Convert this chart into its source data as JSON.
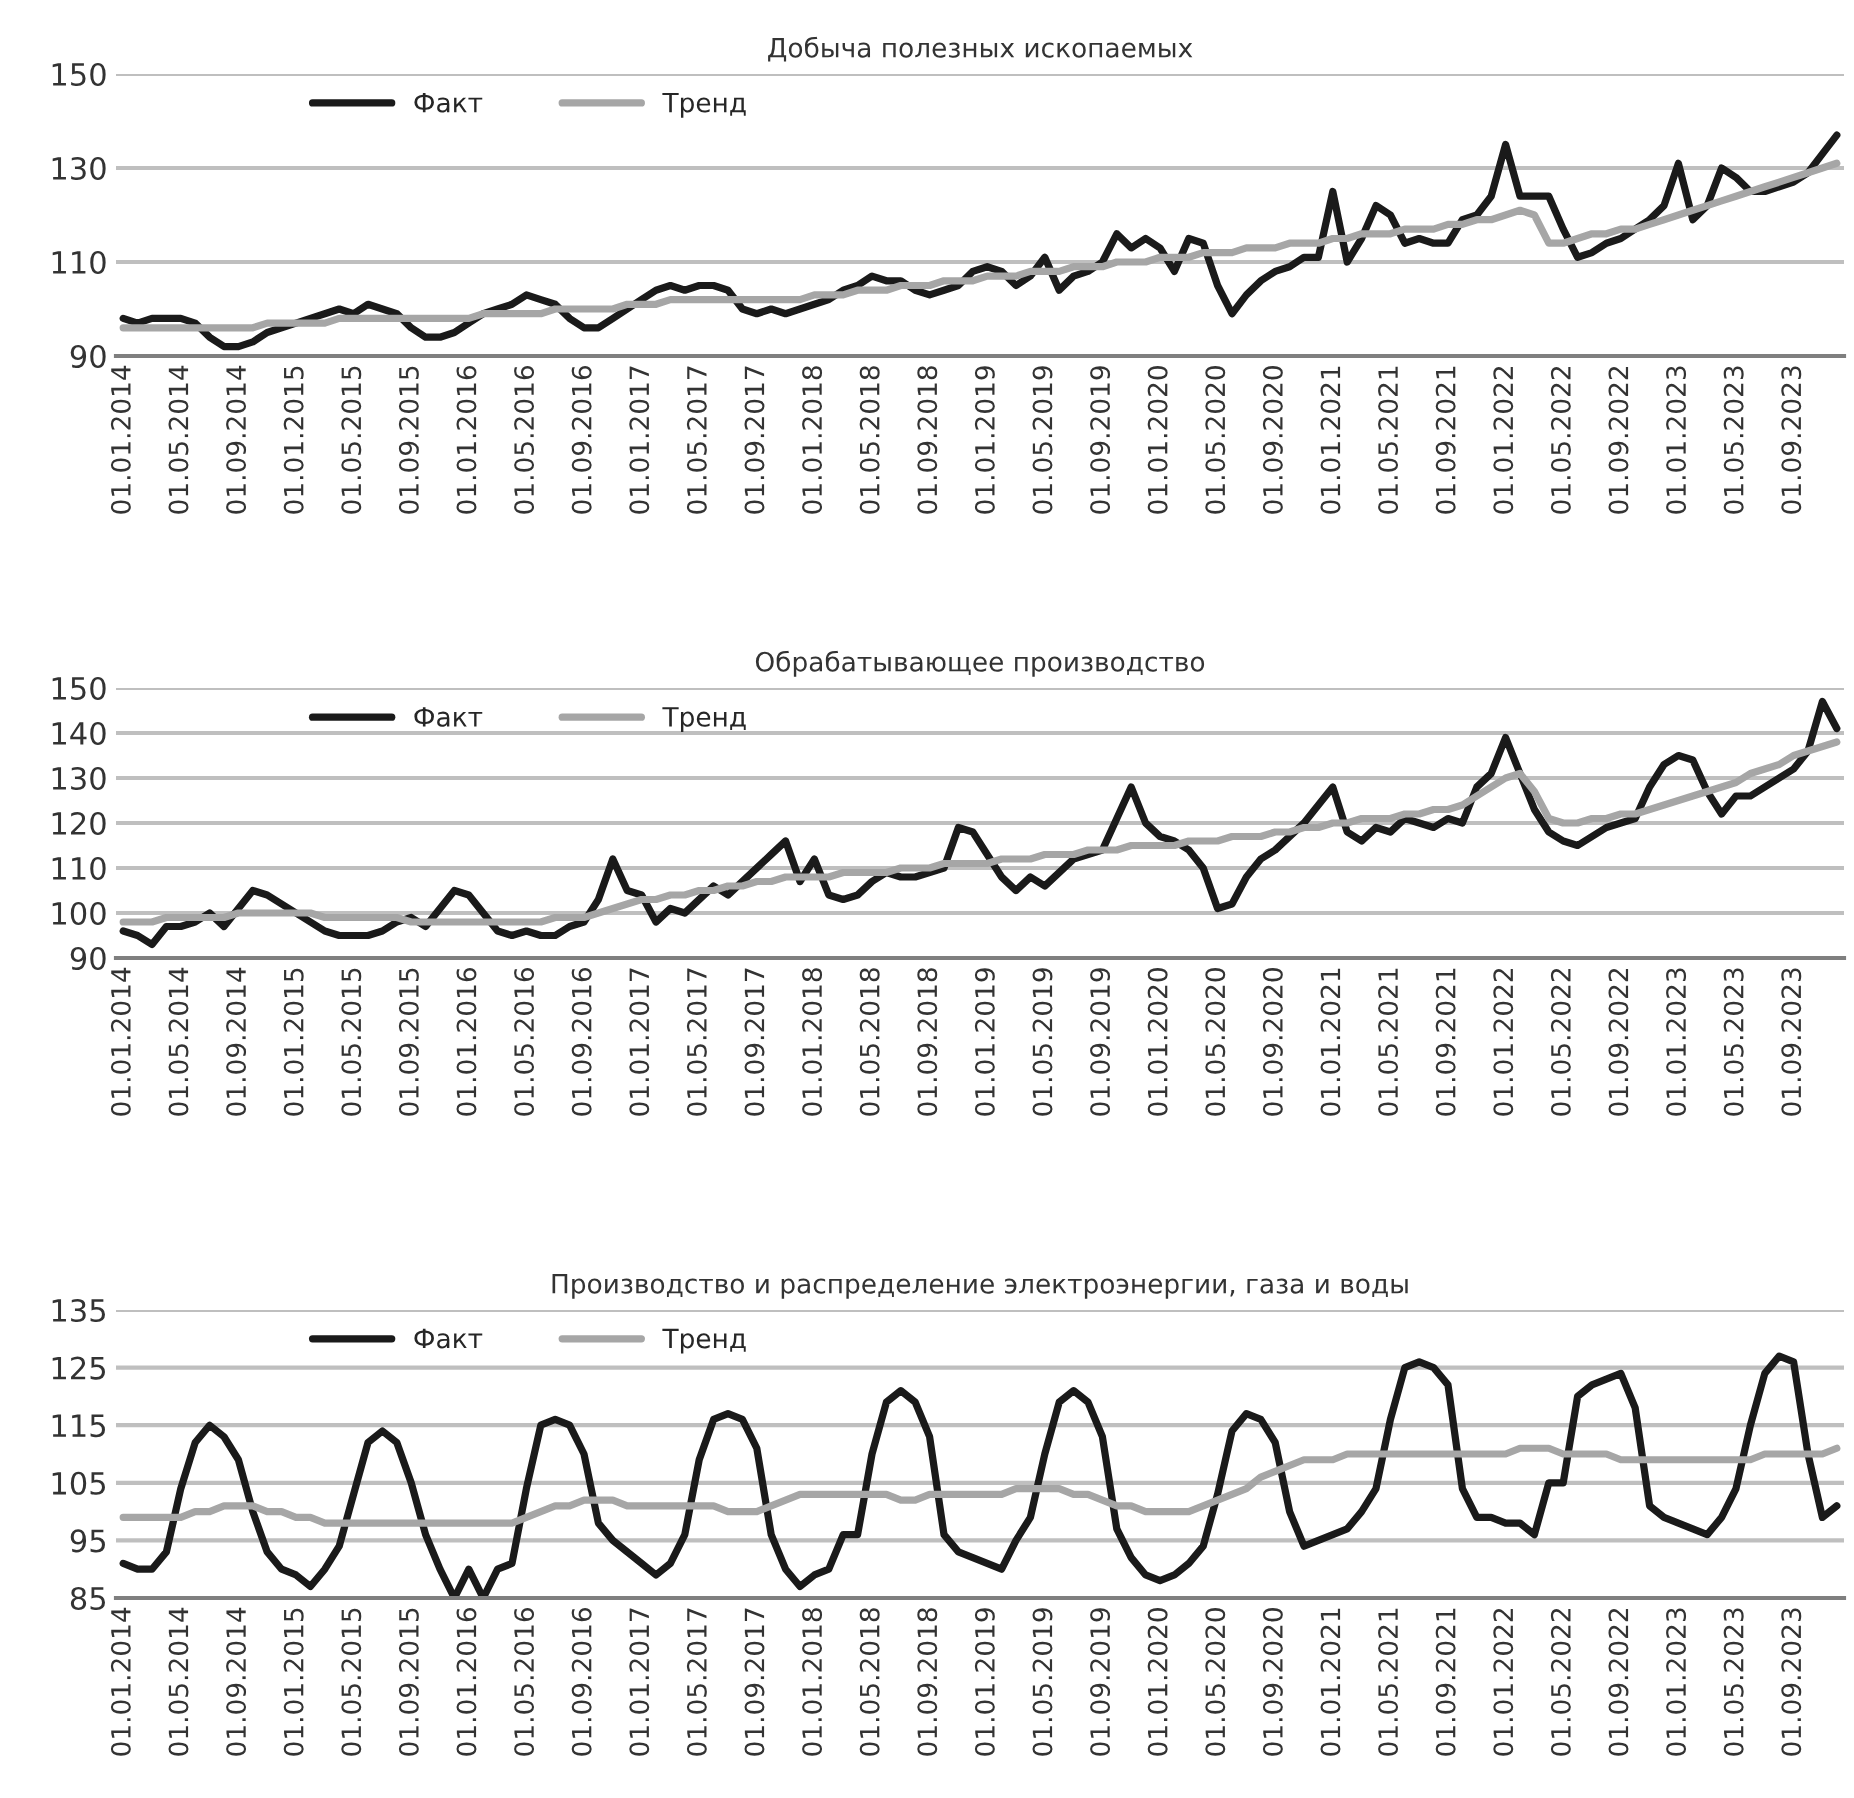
{
  "chart_data": [
    {
      "type": "line",
      "title": "Добыча полезных ископаемых",
      "categories": [
        "01.01.2014",
        null,
        null,
        null,
        "01.05.2014",
        null,
        null,
        null,
        "01.09.2014",
        null,
        null,
        null,
        "01.01.2015",
        null,
        null,
        null,
        "01.05.2015",
        null,
        null,
        null,
        "01.09.2015",
        null,
        null,
        null,
        "01.01.2016",
        null,
        null,
        null,
        "01.05.2016",
        null,
        null,
        null,
        "01.09.2016",
        null,
        null,
        null,
        "01.01.2017",
        null,
        null,
        null,
        "01.05.2017",
        null,
        null,
        null,
        "01.09.2017",
        null,
        null,
        null,
        "01.01.2018",
        null,
        null,
        null,
        "01.05.2018",
        null,
        null,
        null,
        "01.09.2018",
        null,
        null,
        null,
        "01.01.2019",
        null,
        null,
        null,
        "01.05.2019",
        null,
        null,
        null,
        "01.09.2019",
        null,
        null,
        null,
        "01.01.2020",
        null,
        null,
        null,
        "01.05.2020",
        null,
        null,
        null,
        "01.09.2020",
        null,
        null,
        null,
        "01.01.2021",
        null,
        null,
        null,
        "01.05.2021",
        null,
        null,
        null,
        "01.09.2021",
        null,
        null,
        null,
        "01.01.2022",
        null,
        null,
        null,
        "01.05.2022",
        null,
        null,
        null,
        "01.09.2022",
        null,
        null,
        null,
        "01.01.2023",
        null,
        null,
        null,
        "01.05.2023",
        null,
        null,
        null,
        "01.09.2023",
        null,
        null,
        null
      ],
      "series": [
        {
          "name": "Факт",
          "color": "#1a1a1a",
          "values": [
            98,
            97,
            98,
            98,
            98,
            97,
            94,
            92,
            92,
            93,
            95,
            96,
            97,
            98,
            99,
            100,
            99,
            101,
            100,
            99,
            96,
            94,
            94,
            95,
            97,
            99,
            100,
            101,
            103,
            102,
            101,
            98,
            96,
            96,
            98,
            100,
            102,
            104,
            105,
            104,
            105,
            105,
            104,
            100,
            99,
            100,
            99,
            100,
            101,
            102,
            104,
            105,
            107,
            106,
            106,
            104,
            103,
            104,
            105,
            108,
            109,
            108,
            105,
            107,
            111,
            104,
            107,
            108,
            110,
            116,
            113,
            115,
            113,
            108,
            115,
            114,
            105,
            99,
            103,
            106,
            108,
            109,
            111,
            111,
            125,
            110,
            115,
            122,
            120,
            114,
            115,
            114,
            114,
            119,
            120,
            124,
            135,
            124,
            124,
            124,
            117,
            111,
            112,
            114,
            115,
            117,
            119,
            122,
            131,
            119,
            122,
            130,
            128,
            125,
            125,
            126,
            127,
            129,
            133,
            137
          ]
        },
        {
          "name": "Тренд",
          "color": "#a6a6a6",
          "values": [
            96,
            96,
            96,
            96,
            96,
            96,
            96,
            96,
            96,
            96,
            97,
            97,
            97,
            97,
            97,
            98,
            98,
            98,
            98,
            98,
            98,
            98,
            98,
            98,
            98,
            99,
            99,
            99,
            99,
            99,
            100,
            100,
            100,
            100,
            100,
            101,
            101,
            101,
            102,
            102,
            102,
            102,
            102,
            102,
            102,
            102,
            102,
            102,
            103,
            103,
            103,
            104,
            104,
            104,
            105,
            105,
            105,
            106,
            106,
            106,
            107,
            107,
            107,
            108,
            108,
            108,
            109,
            109,
            109,
            110,
            110,
            110,
            111,
            111,
            111,
            112,
            112,
            112,
            113,
            113,
            113,
            114,
            114,
            114,
            115,
            115,
            116,
            116,
            116,
            117,
            117,
            117,
            118,
            118,
            119,
            119,
            120,
            121,
            120,
            114,
            114,
            115,
            116,
            116,
            117,
            117,
            118,
            119,
            120,
            121,
            122,
            123,
            124,
            125,
            126,
            127,
            128,
            129,
            130,
            131
          ]
        }
      ],
      "ylim": [
        90,
        150
      ],
      "yticks": [
        90,
        110,
        130,
        150
      ],
      "grid": "y",
      "legend": "top left"
    },
    {
      "type": "line",
      "title": "Обрабатывающее производство",
      "categories": [
        "01.01.2014",
        null,
        null,
        null,
        "01.05.2014",
        null,
        null,
        null,
        "01.09.2014",
        null,
        null,
        null,
        "01.01.2015",
        null,
        null,
        null,
        "01.05.2015",
        null,
        null,
        null,
        "01.09.2015",
        null,
        null,
        null,
        "01.01.2016",
        null,
        null,
        null,
        "01.05.2016",
        null,
        null,
        null,
        "01.09.2016",
        null,
        null,
        null,
        "01.01.2017",
        null,
        null,
        null,
        "01.05.2017",
        null,
        null,
        null,
        "01.09.2017",
        null,
        null,
        null,
        "01.01.2018",
        null,
        null,
        null,
        "01.05.2018",
        null,
        null,
        null,
        "01.09.2018",
        null,
        null,
        null,
        "01.01.2019",
        null,
        null,
        null,
        "01.05.2019",
        null,
        null,
        null,
        "01.09.2019",
        null,
        null,
        null,
        "01.01.2020",
        null,
        null,
        null,
        "01.05.2020",
        null,
        null,
        null,
        "01.09.2020",
        null,
        null,
        null,
        "01.01.2021",
        null,
        null,
        null,
        "01.05.2021",
        null,
        null,
        null,
        "01.09.2021",
        null,
        null,
        null,
        "01.01.2022",
        null,
        null,
        null,
        "01.05.2022",
        null,
        null,
        null,
        "01.09.2022",
        null,
        null,
        null,
        "01.01.2023",
        null,
        null,
        null,
        "01.05.2023",
        null,
        null,
        null,
        "01.09.2023",
        null,
        null,
        null
      ],
      "series": [
        {
          "name": "Факт",
          "color": "#1a1a1a",
          "values": [
            96,
            95,
            93,
            97,
            97,
            98,
            100,
            97,
            101,
            105,
            104,
            102,
            100,
            98,
            96,
            95,
            95,
            95,
            96,
            98,
            99,
            97,
            101,
            105,
            104,
            100,
            96,
            95,
            96,
            95,
            95,
            97,
            98,
            103,
            112,
            105,
            104,
            98,
            101,
            100,
            103,
            106,
            104,
            107,
            110,
            113,
            116,
            107,
            112,
            104,
            103,
            104,
            107,
            109,
            108,
            108,
            109,
            110,
            119,
            118,
            113,
            108,
            105,
            108,
            106,
            109,
            112,
            113,
            114,
            121,
            128,
            120,
            117,
            116,
            114,
            110,
            101,
            102,
            108,
            112,
            114,
            117,
            120,
            124,
            128,
            118,
            116,
            119,
            118,
            121,
            120,
            119,
            121,
            120,
            128,
            131,
            139,
            131,
            123,
            118,
            116,
            115,
            117,
            119,
            120,
            121,
            128,
            133,
            135,
            134,
            127,
            122,
            126,
            126,
            128,
            130,
            132,
            136,
            147,
            141
          ]
        },
        {
          "name": "Тренд",
          "color": "#a6a6a6",
          "values": [
            98,
            98,
            98,
            99,
            99,
            99,
            99,
            99,
            100,
            100,
            100,
            100,
            100,
            100,
            99,
            99,
            99,
            99,
            99,
            99,
            98,
            98,
            98,
            98,
            98,
            98,
            98,
            98,
            98,
            98,
            99,
            99,
            99,
            100,
            101,
            102,
            103,
            103,
            104,
            104,
            105,
            105,
            106,
            106,
            107,
            107,
            108,
            108,
            108,
            108,
            109,
            109,
            109,
            109,
            110,
            110,
            110,
            111,
            111,
            111,
            111,
            112,
            112,
            112,
            113,
            113,
            113,
            114,
            114,
            114,
            115,
            115,
            115,
            115,
            116,
            116,
            116,
            117,
            117,
            117,
            118,
            118,
            119,
            119,
            120,
            120,
            121,
            121,
            121,
            122,
            122,
            123,
            123,
            124,
            126,
            128,
            130,
            131,
            127,
            121,
            120,
            120,
            121,
            121,
            122,
            122,
            123,
            124,
            125,
            126,
            127,
            128,
            129,
            131,
            132,
            133,
            135,
            136,
            137,
            138
          ]
        }
      ],
      "ylim": [
        90,
        150
      ],
      "yticks": [
        90,
        100,
        110,
        120,
        130,
        140,
        150
      ],
      "grid": "y",
      "legend": "top left"
    },
    {
      "type": "line",
      "title": "Производство и распределение электроэнергии, газа и воды",
      "categories": [
        "01.01.2014",
        null,
        null,
        null,
        "01.05.2014",
        null,
        null,
        null,
        "01.09.2014",
        null,
        null,
        null,
        "01.01.2015",
        null,
        null,
        null,
        "01.05.2015",
        null,
        null,
        null,
        "01.09.2015",
        null,
        null,
        null,
        "01.01.2016",
        null,
        null,
        null,
        "01.05.2016",
        null,
        null,
        null,
        "01.09.2016",
        null,
        null,
        null,
        "01.01.2017",
        null,
        null,
        null,
        "01.05.2017",
        null,
        null,
        null,
        "01.09.2017",
        null,
        null,
        null,
        "01.01.2018",
        null,
        null,
        null,
        "01.05.2018",
        null,
        null,
        null,
        "01.09.2018",
        null,
        null,
        null,
        "01.01.2019",
        null,
        null,
        null,
        "01.05.2019",
        null,
        null,
        null,
        "01.09.2019",
        null,
        null,
        null,
        "01.01.2020",
        null,
        null,
        null,
        "01.05.2020",
        null,
        null,
        null,
        "01.09.2020",
        null,
        null,
        null,
        "01.01.2021",
        null,
        null,
        null,
        "01.05.2021",
        null,
        null,
        null,
        "01.09.2021",
        null,
        null,
        null,
        "01.01.2022",
        null,
        null,
        null,
        "01.05.2022",
        null,
        null,
        null,
        "01.09.2022",
        null,
        null,
        null,
        "01.01.2023",
        null,
        null,
        null,
        "01.05.2023",
        null,
        null,
        null,
        "01.09.2023",
        null,
        null,
        null
      ],
      "series": [
        {
          "name": "Факт",
          "color": "#1a1a1a",
          "values": [
            91,
            90,
            90,
            93,
            104,
            112,
            115,
            113,
            109,
            100,
            93,
            90,
            89,
            87,
            90,
            94,
            103,
            112,
            114,
            112,
            105,
            96,
            90,
            85,
            90,
            85,
            90,
            91,
            104,
            115,
            116,
            115,
            110,
            98,
            95,
            93,
            91,
            89,
            91,
            96,
            109,
            116,
            117,
            116,
            111,
            96,
            90,
            87,
            89,
            90,
            96,
            96,
            110,
            119,
            121,
            119,
            113,
            96,
            93,
            92,
            91,
            90,
            95,
            99,
            110,
            119,
            121,
            119,
            113,
            97,
            92,
            89,
            88,
            89,
            91,
            94,
            103,
            114,
            117,
            116,
            112,
            100,
            94,
            95,
            96,
            97,
            100,
            104,
            116,
            125,
            126,
            125,
            122,
            104,
            99,
            99,
            98,
            98,
            96,
            105,
            105,
            120,
            122,
            123,
            124,
            118,
            101,
            99,
            98,
            97,
            96,
            99,
            104,
            115,
            124,
            127,
            126,
            110,
            99,
            101
          ]
        },
        {
          "name": "Тренд",
          "color": "#a6a6a6",
          "values": [
            99,
            99,
            99,
            99,
            99,
            100,
            100,
            101,
            101,
            101,
            100,
            100,
            99,
            99,
            98,
            98,
            98,
            98,
            98,
            98,
            98,
            98,
            98,
            98,
            98,
            98,
            98,
            98,
            99,
            100,
            101,
            101,
            102,
            102,
            102,
            101,
            101,
            101,
            101,
            101,
            101,
            101,
            100,
            100,
            100,
            101,
            102,
            103,
            103,
            103,
            103,
            103,
            103,
            103,
            102,
            102,
            103,
            103,
            103,
            103,
            103,
            103,
            104,
            104,
            104,
            104,
            103,
            103,
            102,
            101,
            101,
            100,
            100,
            100,
            100,
            101,
            102,
            103,
            104,
            106,
            107,
            108,
            109,
            109,
            109,
            110,
            110,
            110,
            110,
            110,
            110,
            110,
            110,
            110,
            110,
            110,
            110,
            111,
            111,
            111,
            110,
            110,
            110,
            110,
            109,
            109,
            109,
            109,
            109,
            109,
            109,
            109,
            109,
            109,
            110,
            110,
            110,
            110,
            110,
            111
          ]
        }
      ],
      "ylim": [
        85,
        135
      ],
      "yticks": [
        85,
        95,
        105,
        115,
        125,
        135
      ],
      "grid": "y",
      "legend": "top left"
    }
  ]
}
